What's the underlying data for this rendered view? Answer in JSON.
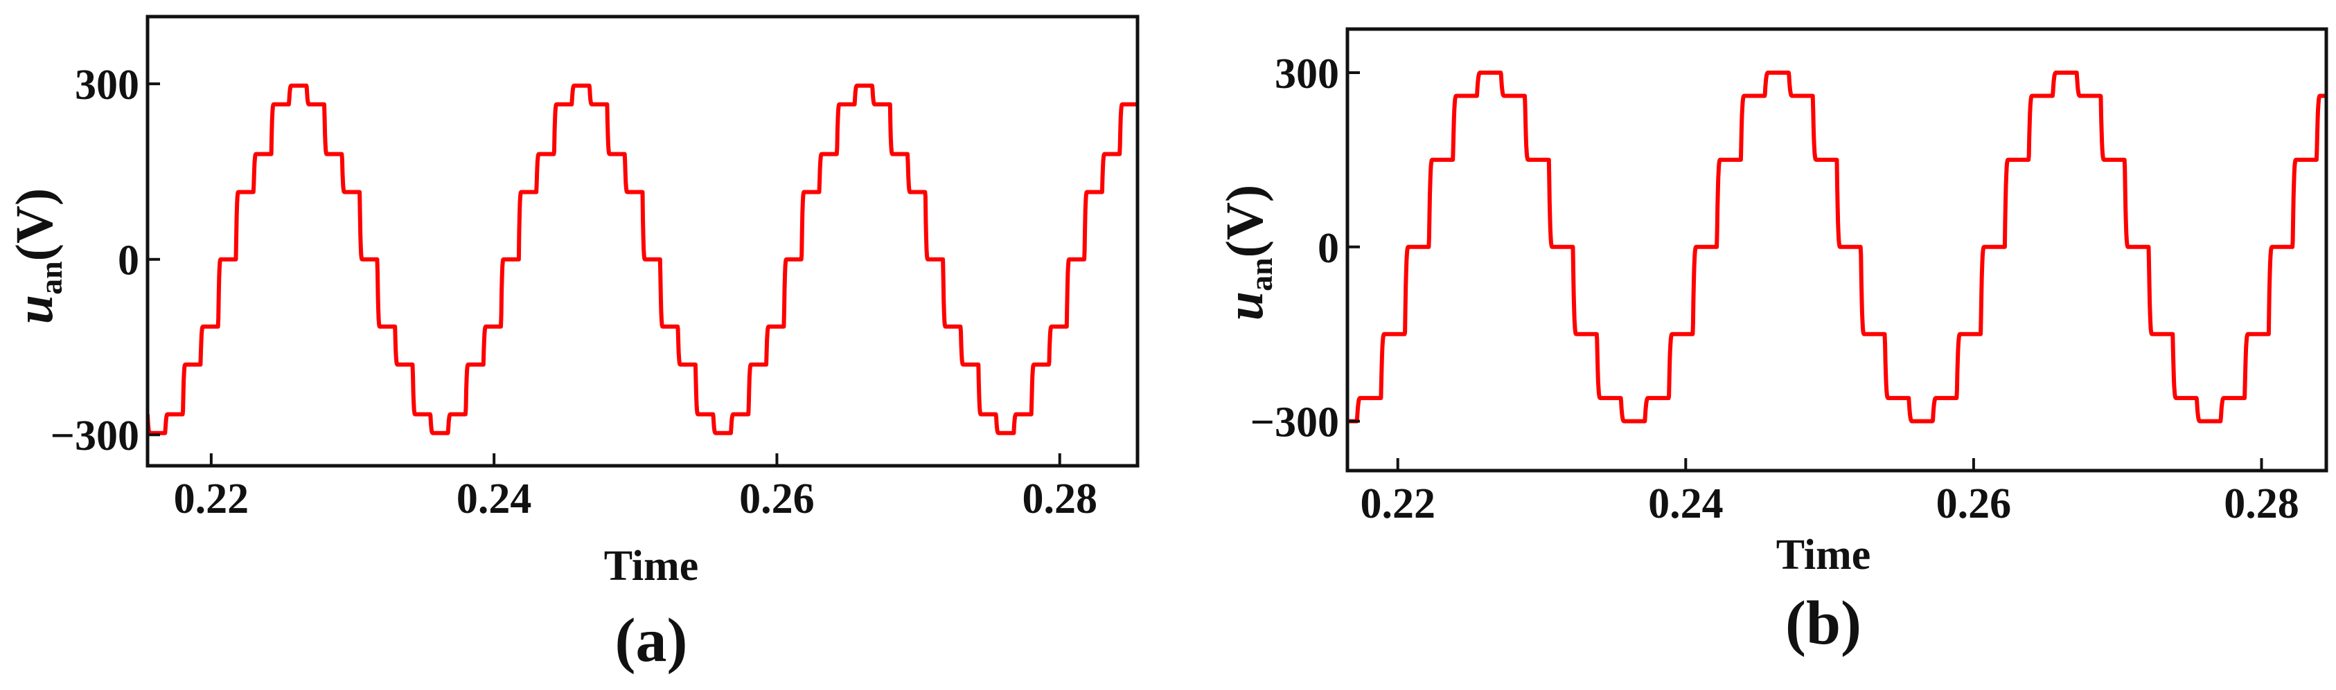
{
  "chart_data": [
    {
      "type": "line",
      "panel_label": "(a)",
      "xlabel": "Time",
      "ylabel": {
        "base": "u",
        "subscript": "an",
        "unit": "(V)"
      },
      "xlim": [
        0.2155,
        0.2855
      ],
      "ylim": [
        -353,
        415
      ],
      "xticks": [
        0.22,
        0.24,
        0.26,
        0.28
      ],
      "xtick_labels": [
        "0.22",
        "0.24",
        "0.26",
        "0.28"
      ],
      "yticks": [
        300,
        0,
        -300
      ],
      "ytick_labels": [
        "300",
        "0",
        "−300"
      ],
      "series": [
        {
          "name": "u_an",
          "color": "#ff0000",
          "waveform": "stepped-sine",
          "frequency_hz": 50,
          "phase_ref_time": 0.2205,
          "levels": [
            0,
            115,
            180,
            265,
            297,
            265,
            180,
            115,
            0,
            -115,
            -180,
            -265,
            -297,
            -265,
            -180,
            -115
          ]
        }
      ]
    },
    {
      "type": "line",
      "panel_label": "(b)",
      "xlabel": "Time",
      "ylabel": {
        "base": "u",
        "subscript": "an",
        "unit": "(V)"
      },
      "xlim": [
        0.2165,
        0.2845
      ],
      "ylim": [
        -385,
        375
      ],
      "xticks": [
        0.22,
        0.24,
        0.26,
        0.28
      ],
      "xtick_labels": [
        "0.22",
        "0.24",
        "0.26",
        "0.28"
      ],
      "yticks": [
        300,
        0,
        -300
      ],
      "ytick_labels": [
        "300",
        "0",
        "−300"
      ],
      "series": [
        {
          "name": "u_an",
          "color": "#ff0000",
          "waveform": "stepped-sine",
          "frequency_hz": 50,
          "phase_ref_time": 0.2205,
          "levels": [
            0,
            150,
            260,
            300,
            260,
            150,
            0,
            -150,
            -260,
            -300,
            -260,
            -150
          ]
        }
      ]
    }
  ]
}
